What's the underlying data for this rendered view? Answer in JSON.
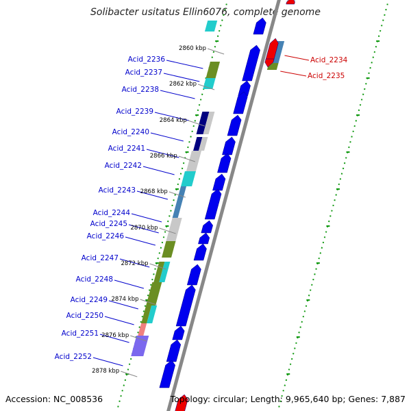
{
  "title": "Solibacter usitatus Ellin6076, complete genome",
  "accession_text": "Accession: NC_008536",
  "topology_text": "Topology: circular; Length: 9,965,640 bp; Genes: 7,887",
  "colors": {
    "blue_label": "#0000cc",
    "red_label": "#cc0000",
    "gene_blue": "#0000ee",
    "gene_red": "#ee0000",
    "axis": "#888888",
    "dotted": "#119911",
    "cyan": "#22cccc",
    "olive": "#6b8e23",
    "steel": "#4682b4",
    "navy": "#000080",
    "grey": "#c8c8c8",
    "slate": "#7b68ee",
    "salmon": "#f08080"
  },
  "kbp_ticks": [
    "2860 kbp",
    "2862 kbp",
    "2864 kbp",
    "2866 kbp",
    "2868 kbp",
    "2870 kbp",
    "2872 kbp",
    "2874 kbp",
    "2876 kbp",
    "2878 kbp"
  ],
  "left_genes": [
    "Acid_2236",
    "Acid_2237",
    "Acid_2238",
    "Acid_2239",
    "Acid_2240",
    "Acid_2241",
    "Acid_2242",
    "Acid_2243",
    "Acid_2244",
    "Acid_2245",
    "Acid_2246",
    "Acid_2247",
    "Acid_2248",
    "Acid_2249",
    "Acid_2250",
    "Acid_2251",
    "Acid_2252"
  ],
  "right_genes": [
    "Acid_2234",
    "Acid_2235"
  ]
}
